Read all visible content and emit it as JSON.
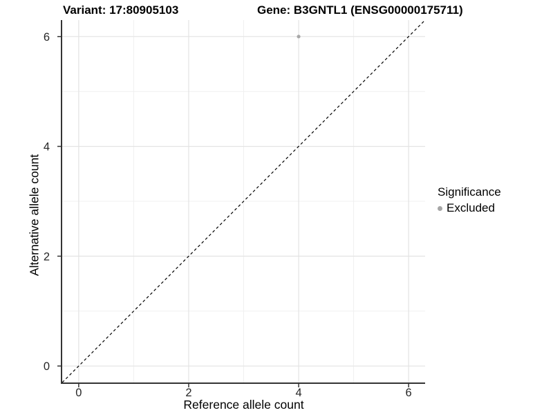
{
  "titles": {
    "variant": "Variant: 17:80905103",
    "gene": "Gene: B3GNTL1 (ENSG00000175711)"
  },
  "chart_data": {
    "type": "scatter",
    "title": "Variant: 17:80905103 — Gene: B3GNTL1 (ENSG00000175711)",
    "xlabel": "Reference allele count",
    "ylabel": "Alternative allele count",
    "xlim": [
      -0.3,
      6.3
    ],
    "ylim": [
      -0.3,
      6.3
    ],
    "x_ticks": [
      0,
      2,
      4,
      6
    ],
    "y_ticks": [
      0,
      2,
      4,
      6
    ],
    "x_minor_ticks": [
      1,
      3,
      5
    ],
    "y_minor_ticks": [
      1,
      3,
      5
    ],
    "grid": true,
    "points": [
      {
        "x": 4,
        "y": 6,
        "series": "Excluded"
      }
    ],
    "reference_line": {
      "type": "identity",
      "x1": -0.3,
      "y1": -0.3,
      "x2": 6.3,
      "y2": 6.3,
      "style": "dashed",
      "color": "#000000"
    },
    "legend": {
      "title": "Significance",
      "position": "right",
      "items": [
        {
          "label": "Excluded",
          "color": "#a6a6a6"
        }
      ]
    },
    "colors": {
      "point": "#a8a8a8",
      "grid_major": "#e3e3e3",
      "grid_minor": "#f0f0f0",
      "axis_line": "#333333",
      "tick_label": "#262626"
    }
  }
}
